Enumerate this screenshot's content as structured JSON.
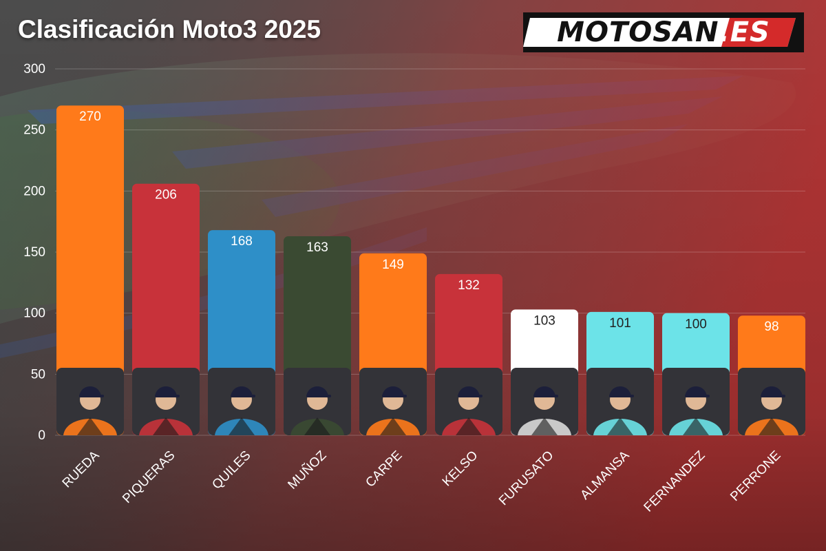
{
  "title": "Clasificación Moto3 2025",
  "logo": {
    "text_main": "MOTOSAN",
    "text_accent": ".ES"
  },
  "chart_data": {
    "type": "bar",
    "title": "Clasificación Moto3 2025",
    "categories": [
      "RUEDA",
      "PIQUERAS",
      "QUILES",
      "MUÑOZ",
      "CARPE",
      "KELSO",
      "FURUSATO",
      "ALMANSA",
      "FERNANDEZ",
      "PERRONE"
    ],
    "values": [
      270,
      206,
      168,
      163,
      149,
      132,
      103,
      101,
      100,
      98
    ],
    "bar_colors": [
      "#ff7a1a",
      "#c8323a",
      "#2e8fc8",
      "#3a4a32",
      "#ff7a1a",
      "#c8323a",
      "#ffffff",
      "#6ce3e8",
      "#6ce3e8",
      "#ff7a1a"
    ],
    "label_colors": [
      "#ffffff",
      "#ffffff",
      "#ffffff",
      "#ffffff",
      "#ffffff",
      "#ffffff",
      "#222222",
      "#222222",
      "#222222",
      "#ffffff"
    ],
    "y_ticks": [
      0,
      50,
      100,
      150,
      200,
      250,
      300
    ],
    "ylim": [
      0,
      300
    ],
    "xlabel": "",
    "ylabel": "",
    "grid": true,
    "legend": "none"
  }
}
